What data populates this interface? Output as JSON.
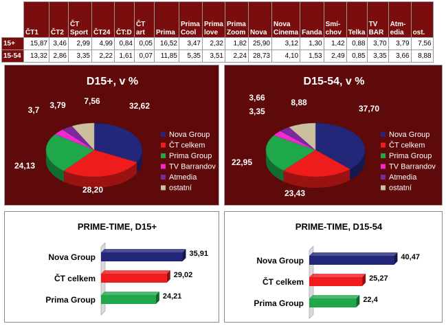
{
  "table": {
    "columns": [
      "ČT1",
      "ČT2",
      "ČT Sport",
      "ČT24",
      "ČT:D",
      "ČT art",
      "Prima",
      "Prima Cool",
      "Prima love",
      "Prima Zoom",
      "Nova",
      "Nova Cinema",
      "Fanda",
      "Smí- chov",
      "Telka",
      "TV BAR",
      "Atm- edia",
      "ost."
    ],
    "rows": [
      {
        "label": "15+",
        "values": [
          "15,87",
          "3,46",
          "2,99",
          "4,99",
          "0,84",
          "0,05",
          "16,52",
          "3,47",
          "2,32",
          "1,82",
          "25,90",
          "3,12",
          "1,30",
          "1,42",
          "0,88",
          "3,70",
          "3,79",
          "7,56"
        ]
      },
      {
        "label": "15-54",
        "values": [
          "13,32",
          "2,86",
          "3,35",
          "2,22",
          "1,61",
          "0,07",
          "11,85",
          "5,35",
          "3,51",
          "2,24",
          "28,73",
          "4,10",
          "1,53",
          "2,49",
          "0,85",
          "3,35",
          "3,66",
          "8,88"
        ]
      }
    ]
  },
  "chart_data": [
    {
      "type": "pie",
      "title": "D15+, v %",
      "labels": [
        "Nova Group",
        "ČT celkem",
        "Prima Group",
        "TV Barrandov",
        "Atmedia",
        "ostatní"
      ],
      "values": [
        32.62,
        28.2,
        24.13,
        3.7,
        3.79,
        7.56
      ],
      "value_labels": [
        "32,62",
        "28,20",
        "24,13",
        "3,7",
        "3,79",
        "7,56"
      ],
      "colors": [
        "#22277a",
        "#ee1c1c",
        "#1fa84a",
        "#ee2ad0",
        "#7a2a9e",
        "#cbbf9e"
      ],
      "legend": "right"
    },
    {
      "type": "pie",
      "title": "D15-54, v %",
      "labels": [
        "Nova Group",
        "ČT celkem",
        "Prima Group",
        "TV Barrandov",
        "Atmedia",
        "ostatní"
      ],
      "values": [
        37.7,
        23.43,
        22.95,
        3.35,
        3.66,
        8.88
      ],
      "value_labels": [
        "37,70",
        "23,43",
        "22,95",
        "3,35",
        "3,66",
        "8,88"
      ],
      "colors": [
        "#22277a",
        "#ee1c1c",
        "#1fa84a",
        "#ee2ad0",
        "#7a2a9e",
        "#cbbf9e"
      ],
      "legend": "right"
    },
    {
      "type": "bar",
      "orientation": "horizontal",
      "title": "PRIME-TIME, D15+",
      "categories": [
        "Nova Group",
        "ČT celkem",
        "Prima Group"
      ],
      "values": [
        35.91,
        29.02,
        24.21
      ],
      "value_labels": [
        "35,91",
        "29,02",
        "24,21"
      ],
      "colors": [
        "#22277a",
        "#ee1c1c",
        "#1fa84a"
      ]
    },
    {
      "type": "bar",
      "orientation": "horizontal",
      "title": "PRIME-TIME, D15-54",
      "categories": [
        "Nova Group",
        "ČT celkem",
        "Prima Group"
      ],
      "values": [
        40.47,
        25.27,
        22.4
      ],
      "value_labels": [
        "40,47",
        "25,27",
        "22,4"
      ],
      "colors": [
        "#22277a",
        "#ee1c1c",
        "#1fa84a"
      ]
    }
  ]
}
